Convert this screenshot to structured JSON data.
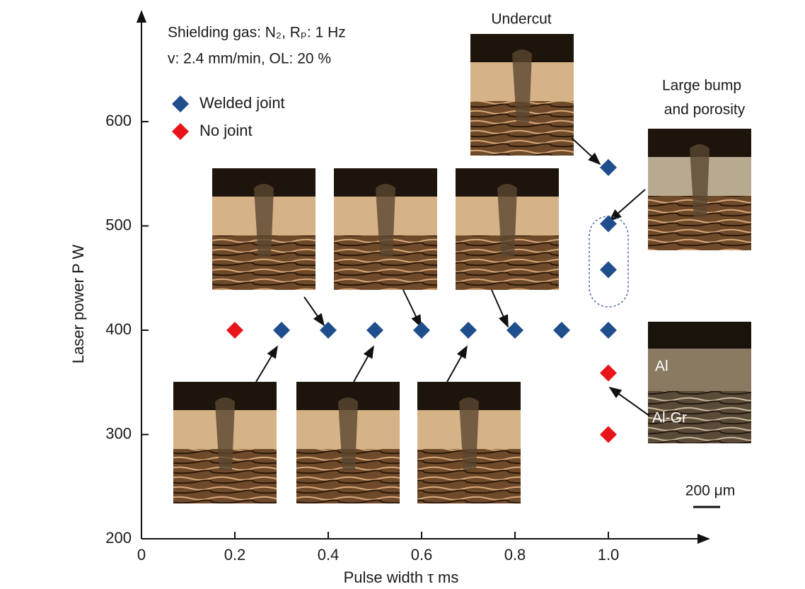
{
  "chart_data": {
    "type": "scatter",
    "x_label": "Pulse width   τ   ms",
    "y_label": "Laser power   P   W",
    "xlim": [
      0,
      1.2
    ],
    "ylim": [
      200,
      700
    ],
    "xticks": [
      0,
      0.2,
      0.4,
      0.6,
      0.8,
      {
        "value": 1,
        "label": "1.0"
      }
    ],
    "yticks": [
      200,
      300,
      400,
      500,
      600
    ],
    "series": [
      {
        "name": "Welded joint",
        "color": "#1f4e8c",
        "x": [
          0.3,
          0.4,
          0.5,
          0.6,
          0.7,
          0.8,
          0.9,
          1.0,
          1.0,
          1.0,
          1.0
        ],
        "values": [
          400,
          400,
          400,
          400,
          400,
          400,
          400,
          400,
          458,
          502,
          556
        ]
      },
      {
        "name": "No joint",
        "color": "#e8141a",
        "x": [
          0.2,
          1.0,
          1.0
        ],
        "values": [
          400,
          359,
          300
        ]
      }
    ],
    "annotations": {
      "conditions": [
        "Shielding gas: N₂, Rₚ: 1 Hz",
        "v: 2.4 mm/min, OL: 20 %"
      ],
      "undercut": "Undercut",
      "bump": [
        "Large bump",
        "and porosity"
      ],
      "al": "Al",
      "algr": "Al-Gr",
      "scale": "200 μm"
    }
  }
}
